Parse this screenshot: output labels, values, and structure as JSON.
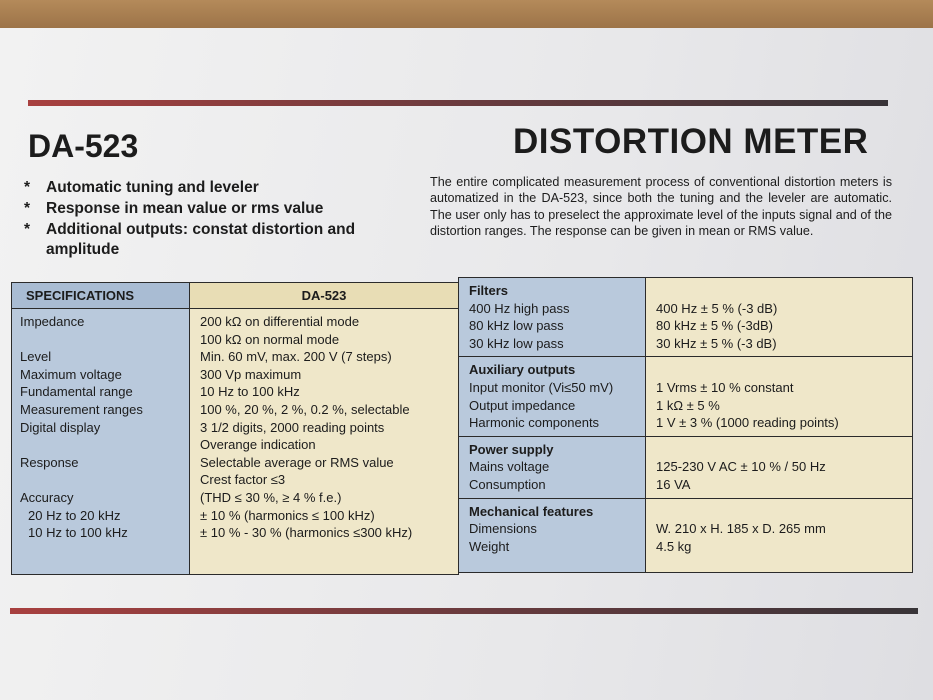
{
  "model": "DA-523",
  "title": "DISTORTION METER",
  "bullet": "*",
  "features": [
    "Automatic tuning and leveler",
    "Response in mean value or rms value",
    "Additional outputs: constat distortion and amplitude"
  ],
  "description": "The entire complicated measurement process of conventional distortion meters is automatized in the DA-523, since both the tuning and the leveler are automatic. The user only has to preselect the approximate level of the inputs signal and of the distortion ranges. The response can be given in mean or RMS value.",
  "specifications": {
    "header": [
      "SPECIFICATIONS",
      "DA-523"
    ],
    "rows": [
      {
        "label": "Impedance",
        "value": "200 kΩ on differential mode"
      },
      {
        "value": "100 kΩ on normal mode"
      },
      {
        "label": "Level",
        "value": "Min. 60 mV, max. 200 V (7 steps)"
      },
      {
        "label": "Maximum voltage",
        "value": "300 Vp maximum"
      },
      {
        "label": "Fundamental range",
        "value": "10 Hz to 100 kHz"
      },
      {
        "label": "Measurement ranges",
        "value": "100 %, 20 %, 2 %, 0.2 %, selectable"
      },
      {
        "label": "Digital display",
        "value": "3 1/2 digits, 2000 reading points"
      },
      {
        "value": "Overange indication"
      },
      {
        "label": "Response",
        "value": "Selectable average or RMS value"
      },
      {
        "value": "Crest factor ≤3"
      },
      {
        "label": "Accuracy",
        "value": "(THD ≤ 30 %, ≥ 4 % f.e.)"
      },
      {
        "label": "20 Hz to 20 kHz",
        "value": "± 10 % (harmonics ≤ 100 kHz)"
      },
      {
        "label": "10 Hz to 100 kHz",
        "value": "± 10 % - 30 % (harmonics ≤300 kHz)"
      }
    ]
  },
  "sections": [
    {
      "title": "Filters",
      "rows": [
        {
          "label": "400 Hz high pass",
          "value": "400 Hz ± 5 % (-3 dB)"
        },
        {
          "label": "80 kHz low pass",
          "value": "80 kHz ± 5 % (-3dB)"
        },
        {
          "label": "30 kHz low pass",
          "value": "30 kHz ± 5 % (-3 dB)"
        }
      ]
    },
    {
      "title": "Auxiliary outputs",
      "rows": [
        {
          "label": "Input monitor (Vi≤50 mV)",
          "value": "1 Vrms ± 10 % constant"
        },
        {
          "label": "Output impedance",
          "value": "1 kΩ ± 5 %"
        },
        {
          "label": "Harmonic components",
          "value": "1 V ± 3 % (1000 reading points)"
        }
      ]
    },
    {
      "title": "Power supply",
      "rows": [
        {
          "label": "Mains voltage",
          "value": "125-230 V AC ± 10 % / 50 Hz"
        },
        {
          "label": "Consumption",
          "value": "16 VA"
        }
      ]
    },
    {
      "title": "Mechanical features",
      "rows": [
        {
          "label": "Dimensions",
          "value": "W. 210 x H. 185 x D. 265 mm"
        },
        {
          "label": "Weight",
          "value": "4.5 kg"
        }
      ]
    }
  ]
}
